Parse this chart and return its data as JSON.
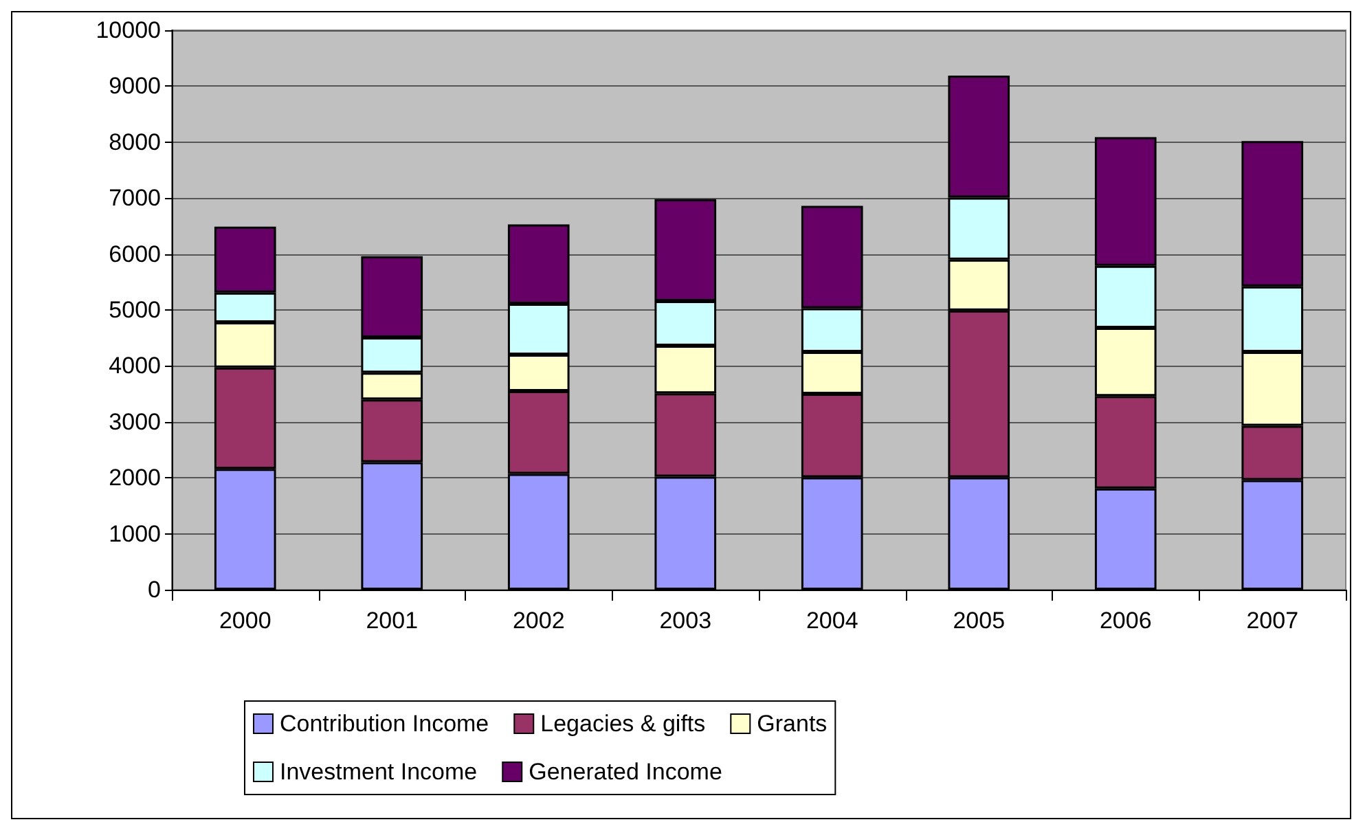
{
  "chart_data": {
    "type": "bar",
    "stacked": true,
    "categories": [
      "2000",
      "2001",
      "2002",
      "2003",
      "2004",
      "2005",
      "2006",
      "2007"
    ],
    "series": [
      {
        "name": "Contribution Income",
        "color": "#9999ff",
        "values": [
          2160,
          2280,
          2070,
          2020,
          2010,
          2010,
          1810,
          1960
        ]
      },
      {
        "name": "Legacies & gifts",
        "color": "#993366",
        "values": [
          1810,
          1120,
          1480,
          1490,
          1490,
          2980,
          1650,
          970
        ]
      },
      {
        "name": "Grants",
        "color": "#ffffcc",
        "values": [
          810,
          480,
          650,
          850,
          750,
          910,
          1220,
          1320
        ]
      },
      {
        "name": "Investment Income",
        "color": "#ccffff",
        "values": [
          530,
          630,
          910,
          800,
          780,
          1110,
          1110,
          1170
        ]
      },
      {
        "name": "Generated Income",
        "color": "#660066",
        "values": [
          1180,
          1450,
          1420,
          1820,
          1830,
          2180,
          2300,
          2600
        ]
      }
    ],
    "ylim": [
      0,
      10000
    ],
    "yticks": [
      0,
      1000,
      2000,
      3000,
      4000,
      5000,
      6000,
      7000,
      8000,
      9000,
      10000
    ],
    "grid": "y",
    "legend": "bottom"
  }
}
